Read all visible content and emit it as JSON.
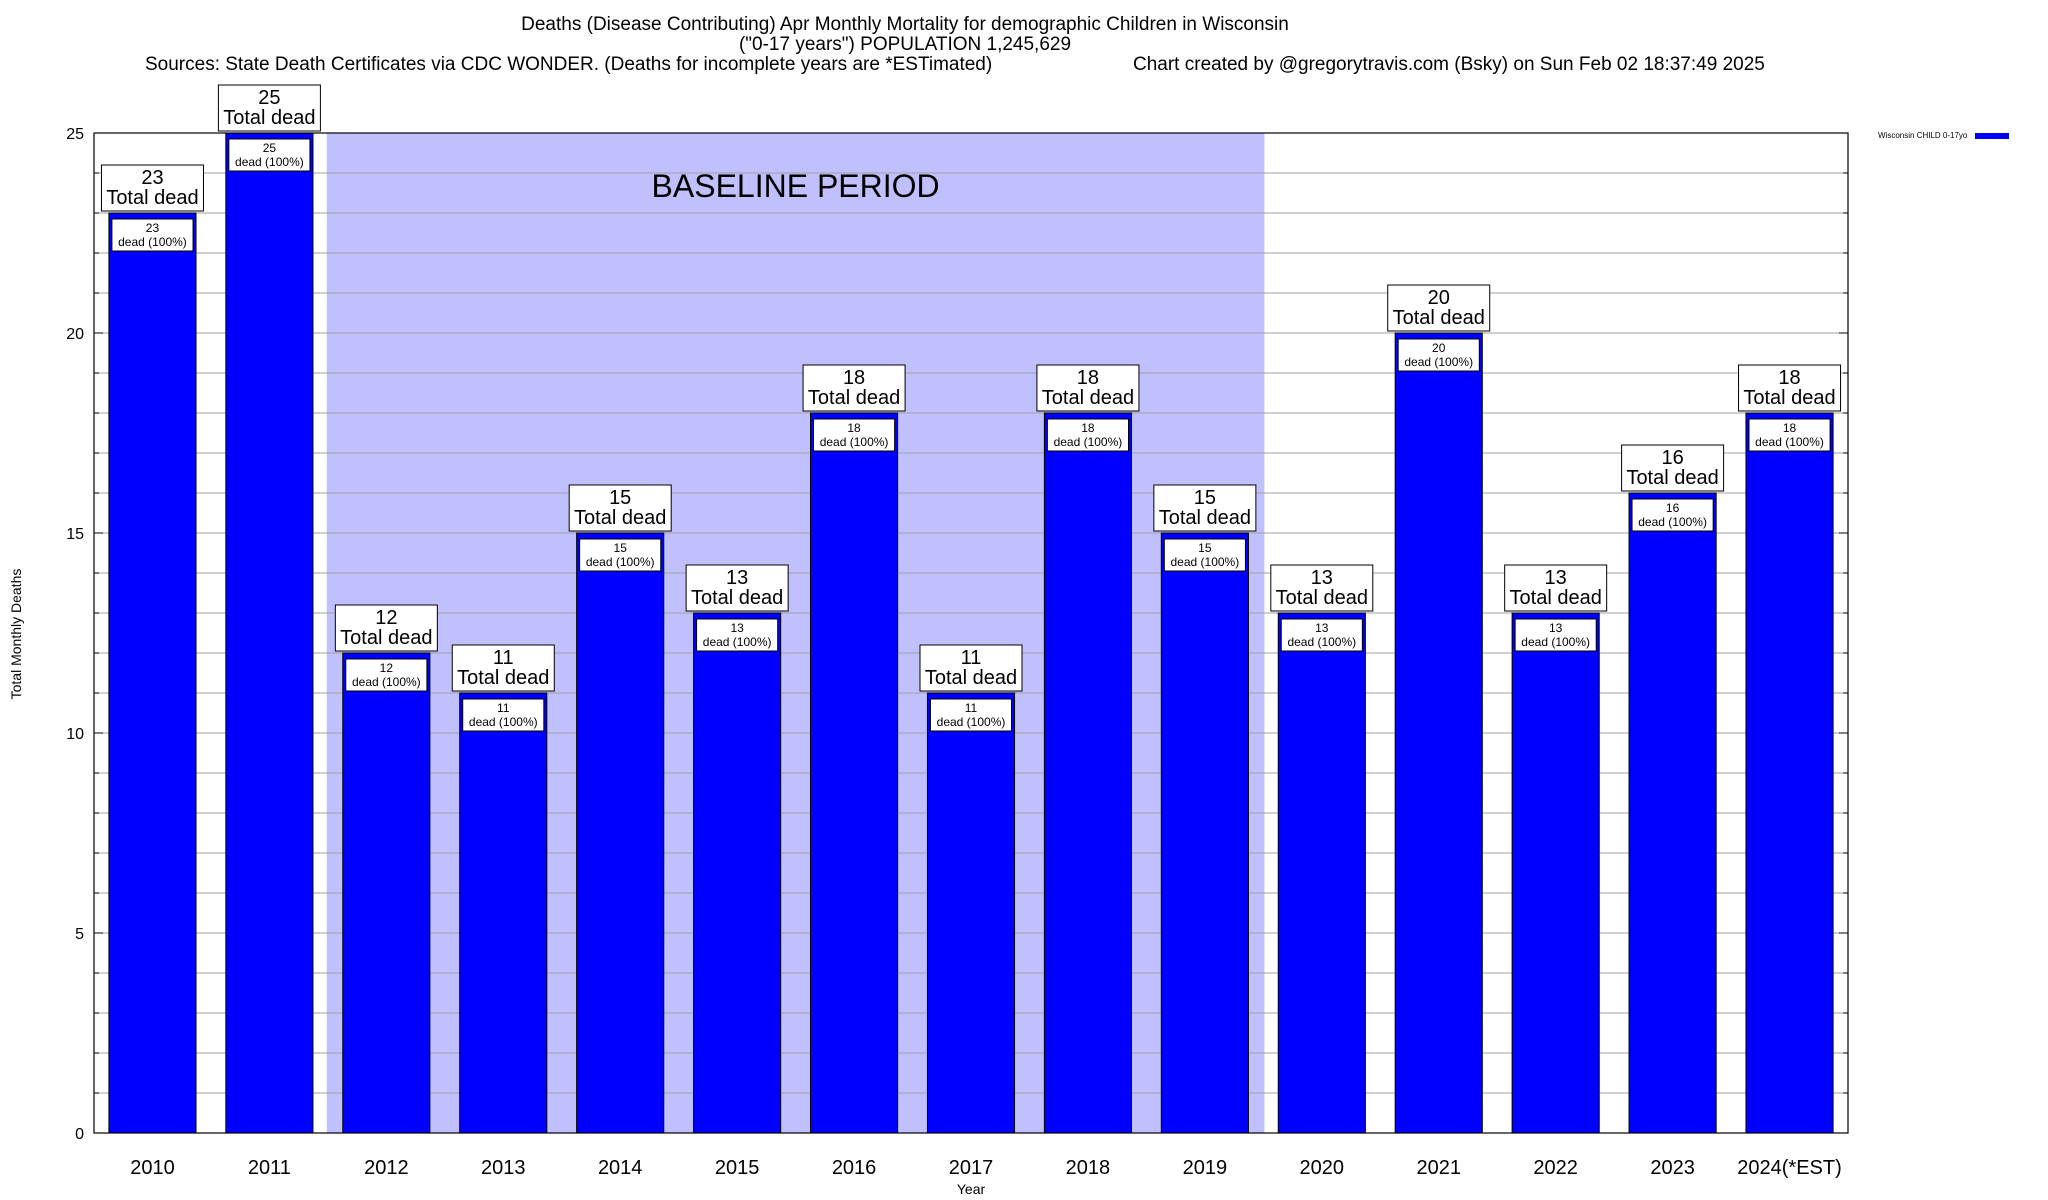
{
  "chart_data": {
    "type": "bar",
    "title_line1": "Deaths (Disease Contributing) Apr Monthly Mortality for demographic Children in Wisconsin",
    "title_line2": "(\"0-17 years\") POPULATION 1,245,629",
    "subtitle_source": "Sources: State Death Certificates via CDC WONDER. (Deaths for incomplete years are *ESTimated)",
    "subtitle_credit": "Chart created by @gregorytravis.com (Bsky) on Sun Feb 02 18:37:49 2025",
    "xlabel": "Year",
    "ylabel": "Total Monthly Deaths",
    "ylim": [
      0,
      25
    ],
    "yticks": [
      0,
      5,
      10,
      15,
      20,
      25
    ],
    "grid": "horizontal",
    "legend_position": "top-right, outside plot",
    "categories": [
      "2010",
      "2011",
      "2012",
      "2013",
      "2014",
      "2015",
      "2016",
      "2017",
      "2018",
      "2019",
      "2020",
      "2021",
      "2022",
      "2023",
      "2024(*EST)"
    ],
    "series": [
      {
        "name": "Wisconsin CHILD 0-17yo",
        "values": [
          23,
          25,
          12,
          11,
          15,
          13,
          18,
          11,
          18,
          15,
          13,
          20,
          13,
          16,
          18
        ],
        "inner_labels": [
          "23 dead (100%)",
          "25 dead (100%)",
          "12 dead (100%)",
          "11 dead (100%)",
          "15 dead (100%)",
          "13 dead (100%)",
          "18 dead (100%)",
          "11 dead (100%)",
          "18 dead (100%)",
          "15 dead (100%)",
          "13 dead (100%)",
          "20 dead (100%)",
          "13 dead (100%)",
          "16 dead (100%)",
          "18 dead (100%)"
        ]
      }
    ],
    "total_label": "Total dead",
    "baseline": {
      "label": "BASELINE PERIOD",
      "from": "2012",
      "to": "2019"
    },
    "colors": {
      "bar": "#0000ff",
      "baseline_shade": "#c0c0ff",
      "grid": "#a0a0a0"
    }
  }
}
